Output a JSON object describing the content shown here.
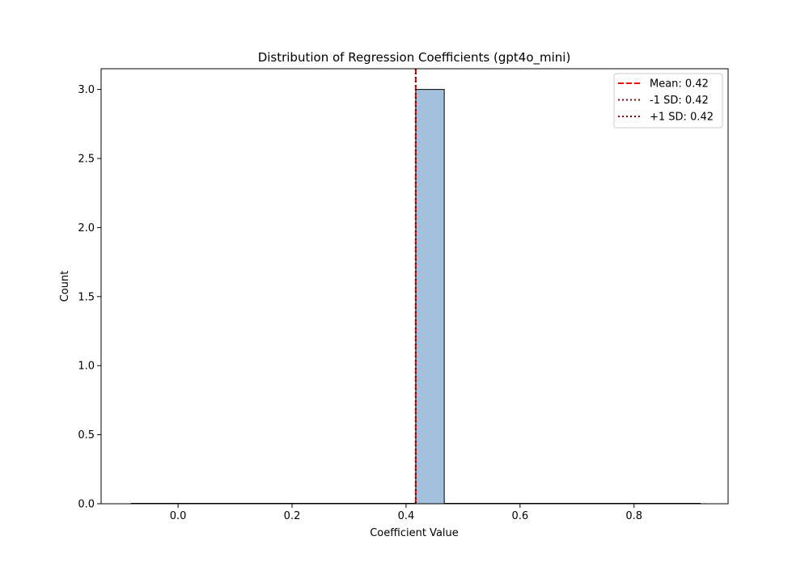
{
  "chart_data": {
    "type": "bar",
    "title": "Distribution of Regression Coefficients (gpt4o_mini)",
    "xlabel": "Coefficient Value",
    "ylabel": "Count",
    "xlim": [
      -0.135,
      0.965
    ],
    "ylim": [
      0,
      3.15
    ],
    "xticks": [
      0.0,
      0.2,
      0.4,
      0.6,
      0.8
    ],
    "xtick_labels": [
      "0.0",
      "0.2",
      "0.4",
      "0.6",
      "0.8"
    ],
    "yticks": [
      0.0,
      0.5,
      1.0,
      1.5,
      2.0,
      2.5,
      3.0
    ],
    "ytick_labels": [
      "0.0",
      "0.5",
      "1.0",
      "1.5",
      "2.0",
      "2.5",
      "3.0"
    ],
    "grid": false,
    "legend_position": "top-right",
    "bins": [
      {
        "x0": 0.417,
        "x1": 0.467,
        "count": 3
      }
    ],
    "baseline_range": [
      -0.083,
      0.917
    ],
    "bar_color": "#a3c1dc",
    "lines": [
      {
        "label": "Mean: 0.42",
        "x": 0.417,
        "style": "dashed",
        "color": "#ff0000"
      },
      {
        "label": "-1 SD: 0.42",
        "x": 0.417,
        "style": "dotted",
        "color": "#8b0000"
      },
      {
        "label": "+1 SD: 0.42",
        "x": 0.417,
        "style": "dotted",
        "color": "#8b0000"
      }
    ]
  }
}
